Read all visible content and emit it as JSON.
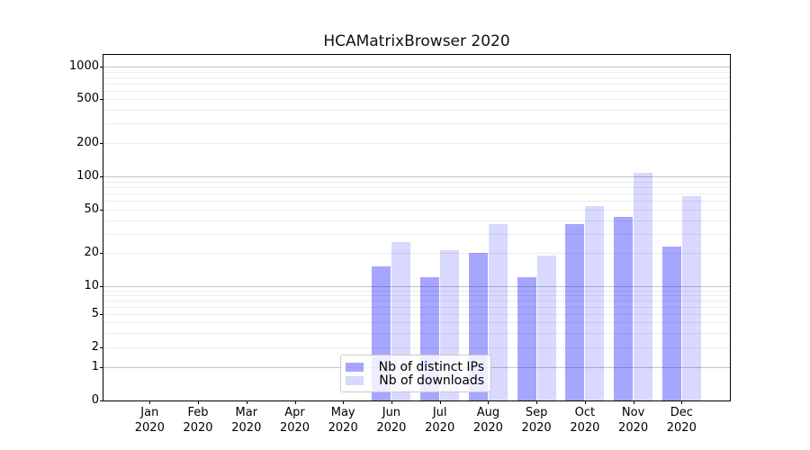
{
  "title": "HCAMatrixBrowser 2020",
  "chart_data": {
    "type": "bar",
    "title": "HCAMatrixBrowser 2020",
    "xlabel": "",
    "ylabel": "",
    "year": "2020",
    "months": [
      "Jan",
      "Feb",
      "Mar",
      "Apr",
      "May",
      "Jun",
      "Jul",
      "Aug",
      "Sep",
      "Oct",
      "Nov",
      "Dec"
    ],
    "categories": [
      "Jan 2020",
      "Feb 2020",
      "Mar 2020",
      "Apr 2020",
      "May 2020",
      "Jun 2020",
      "Jul 2020",
      "Aug 2020",
      "Sep 2020",
      "Oct 2020",
      "Nov 2020",
      "Dec 2020"
    ],
    "series": [
      {
        "name": "Nb of distinct IPs",
        "color": "rgba(0,0,255,0.35)",
        "values": [
          0,
          0,
          0,
          0,
          0,
          15,
          12,
          20,
          12,
          37,
          43,
          23
        ]
      },
      {
        "name": "Nb of downloads",
        "color": "rgba(0,0,255,0.15)",
        "values": [
          0,
          0,
          0,
          0,
          0,
          25,
          21,
          37,
          19,
          54,
          108,
          66
        ]
      }
    ],
    "yticks": [
      0,
      1,
      2,
      5,
      10,
      20,
      50,
      100,
      200,
      500,
      1000
    ],
    "ylim": [
      0,
      1300
    ],
    "yscale": "symlog",
    "grid": true,
    "legend_position": "lower center",
    "colors": {
      "major_grid": "#c3c3c3",
      "minor_grid": "#ebebeb",
      "axis": "#000000",
      "bar_ips": "rgba(0,0,255,0.35)",
      "bar_downloads": "rgba(0,0,255,0.15)"
    }
  }
}
